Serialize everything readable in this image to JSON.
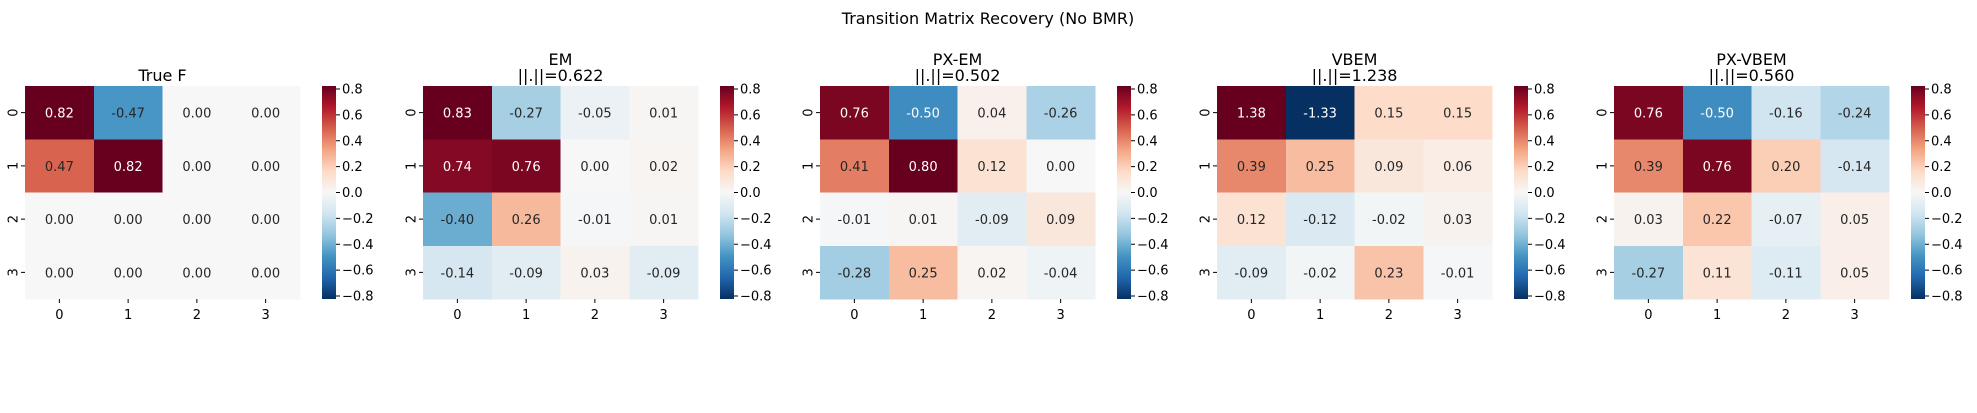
{
  "figure": {
    "suptitle": "Transition Matrix Recovery (No BMR)"
  },
  "colormap": {
    "name": "RdBu_r",
    "vmin": -0.8,
    "vmax": 0.8,
    "colorbar_ticks": [
      "0.8",
      "0.6",
      "0.4",
      "0.2",
      "0.0",
      "−0.2",
      "−0.4",
      "−0.6",
      "−0.8"
    ]
  },
  "chart_data": [
    {
      "type": "heatmap",
      "title_line1": "True F",
      "title_line2": "",
      "x_ticks": [
        "0",
        "1",
        "2",
        "3"
      ],
      "y_ticks": [
        "0",
        "1",
        "2",
        "3"
      ],
      "values": [
        [
          0.82,
          -0.47,
          0.0,
          0.0
        ],
        [
          0.47,
          0.82,
          0.0,
          0.0
        ],
        [
          0.0,
          0.0,
          0.0,
          0.0
        ],
        [
          0.0,
          0.0,
          0.0,
          0.0
        ]
      ],
      "labels": [
        [
          "0.82",
          "-0.47",
          "0.00",
          "0.00"
        ],
        [
          "0.47",
          "0.82",
          "0.00",
          "0.00"
        ],
        [
          "0.00",
          "0.00",
          "0.00",
          "0.00"
        ],
        [
          "0.00",
          "0.00",
          "0.00",
          "0.00"
        ]
      ]
    },
    {
      "type": "heatmap",
      "title_line1": "EM",
      "title_line2": "||.||=0.622",
      "x_ticks": [
        "0",
        "1",
        "2",
        "3"
      ],
      "y_ticks": [
        "0",
        "1",
        "2",
        "3"
      ],
      "values": [
        [
          0.83,
          -0.27,
          -0.05,
          0.01
        ],
        [
          0.74,
          0.76,
          0.0,
          0.02
        ],
        [
          -0.4,
          0.26,
          -0.01,
          0.01
        ],
        [
          -0.14,
          -0.09,
          0.03,
          -0.09
        ]
      ],
      "labels": [
        [
          "0.83",
          "-0.27",
          "-0.05",
          "0.01"
        ],
        [
          "0.74",
          "0.76",
          "0.00",
          "0.02"
        ],
        [
          "-0.40",
          "0.26",
          "-0.01",
          "0.01"
        ],
        [
          "-0.14",
          "-0.09",
          "0.03",
          "-0.09"
        ]
      ]
    },
    {
      "type": "heatmap",
      "title_line1": "PX-EM",
      "title_line2": "||.||=0.502",
      "x_ticks": [
        "0",
        "1",
        "2",
        "3"
      ],
      "y_ticks": [
        "0",
        "1",
        "2",
        "3"
      ],
      "values": [
        [
          0.76,
          -0.5,
          0.04,
          -0.26
        ],
        [
          0.41,
          0.8,
          0.12,
          0.0
        ],
        [
          -0.01,
          0.01,
          -0.09,
          0.09
        ],
        [
          -0.28,
          0.25,
          0.02,
          -0.04
        ]
      ],
      "labels": [
        [
          "0.76",
          "-0.50",
          "0.04",
          "-0.26"
        ],
        [
          "0.41",
          "0.80",
          "0.12",
          "0.00"
        ],
        [
          "-0.01",
          "0.01",
          "-0.09",
          "0.09"
        ],
        [
          "-0.28",
          "0.25",
          "0.02",
          "-0.04"
        ]
      ]
    },
    {
      "type": "heatmap",
      "title_line1": "VBEM",
      "title_line2": "||.||=1.238",
      "x_ticks": [
        "0",
        "1",
        "2",
        "3"
      ],
      "y_ticks": [
        "0",
        "1",
        "2",
        "3"
      ],
      "values": [
        [
          1.38,
          -1.33,
          0.15,
          0.15
        ],
        [
          0.39,
          0.25,
          0.09,
          0.06
        ],
        [
          0.12,
          -0.12,
          -0.02,
          0.03
        ],
        [
          -0.09,
          -0.02,
          0.23,
          -0.01
        ]
      ],
      "labels": [
        [
          "1.38",
          "-1.33",
          "0.15",
          "0.15"
        ],
        [
          "0.39",
          "0.25",
          "0.09",
          "0.06"
        ],
        [
          "0.12",
          "-0.12",
          "-0.02",
          "0.03"
        ],
        [
          "-0.09",
          "-0.02",
          "0.23",
          "-0.01"
        ]
      ]
    },
    {
      "type": "heatmap",
      "title_line1": "PX-VBEM",
      "title_line2": "||.||=0.560",
      "x_ticks": [
        "0",
        "1",
        "2",
        "3"
      ],
      "y_ticks": [
        "0",
        "1",
        "2",
        "3"
      ],
      "values": [
        [
          0.76,
          -0.5,
          -0.16,
          -0.24
        ],
        [
          0.39,
          0.76,
          0.2,
          -0.14
        ],
        [
          0.03,
          0.22,
          -0.07,
          0.05
        ],
        [
          -0.27,
          0.11,
          -0.11,
          0.05
        ]
      ],
      "labels": [
        [
          "0.76",
          "-0.50",
          "-0.16",
          "-0.24"
        ],
        [
          "0.39",
          "0.76",
          "0.20",
          "-0.14"
        ],
        [
          "0.03",
          "0.22",
          "-0.07",
          "0.05"
        ],
        [
          "-0.27",
          "0.11",
          "-0.11",
          "0.05"
        ]
      ]
    }
  ]
}
